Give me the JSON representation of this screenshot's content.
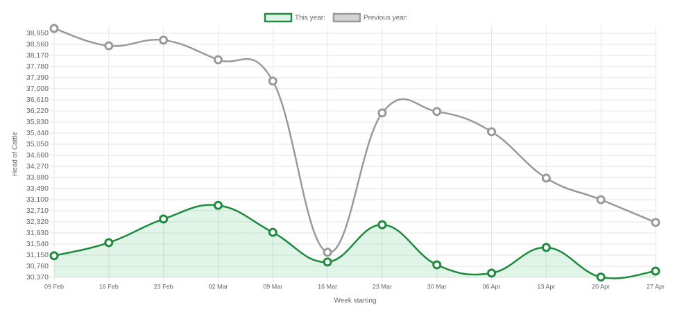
{
  "chart_data": {
    "type": "line",
    "x_label": "Week starting",
    "y_label": "Head of Cattle",
    "categories": [
      "09 Feb",
      "16 Feb",
      "23 Feb",
      "02 Mar",
      "09 Mar",
      "16 Mar",
      "23 Mar",
      "30 Mar",
      "06 Apr",
      "13 Apr",
      "20 Apr",
      "27 Apr"
    ],
    "series": [
      {
        "name": "This year:",
        "color": "#1e8a3e",
        "fill": "rgba(46,184,92,0.15)",
        "values": [
          31130,
          31590,
          32420,
          32900,
          31950,
          30910,
          32220,
          30810,
          30520,
          31420,
          30380,
          30590
        ]
      },
      {
        "name": "Previous year:",
        "color": "#999999",
        "fill": "#d3d3d3",
        "values": [
          39120,
          38510,
          38710,
          38020,
          37270,
          31250,
          36150,
          36200,
          35490,
          33860,
          33100,
          32300
        ]
      }
    ],
    "ylim": [
      30370,
      39200
    ],
    "yticks": [
      {
        "value": 30370,
        "label": "30,370"
      },
      {
        "value": 30760,
        "label": "30,760"
      },
      {
        "value": 31150,
        "label": "31,150"
      },
      {
        "value": 31540,
        "label": "31,540"
      },
      {
        "value": 31930,
        "label": "31,930"
      },
      {
        "value": 32320,
        "label": "32,320"
      },
      {
        "value": 32710,
        "label": "32,710"
      },
      {
        "value": 33100,
        "label": "33,100"
      },
      {
        "value": 33490,
        "label": "33,490"
      },
      {
        "value": 33880,
        "label": "33,880"
      },
      {
        "value": 34270,
        "label": "34,270"
      },
      {
        "value": 34660,
        "label": "34,660"
      },
      {
        "value": 35050,
        "label": "35,050"
      },
      {
        "value": 35440,
        "label": "35,440"
      },
      {
        "value": 35830,
        "label": "35,830"
      },
      {
        "value": 36220,
        "label": "36,220"
      },
      {
        "value": 36610,
        "label": "36,610"
      },
      {
        "value": 37000,
        "label": "37,000"
      },
      {
        "value": 37390,
        "label": "37,390"
      },
      {
        "value": 37780,
        "label": "37,780"
      },
      {
        "value": 38170,
        "label": "38,170"
      },
      {
        "value": 38560,
        "label": "38,560"
      },
      {
        "value": 38950,
        "label": "38,950"
      }
    ],
    "grid": true,
    "legend": "top"
  }
}
